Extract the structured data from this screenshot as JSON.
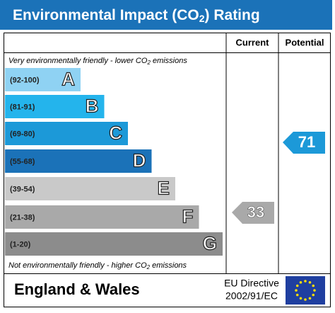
{
  "header": {
    "title": {
      "pre": "Environmental Impact (CO",
      "sub": "2",
      "post": ") Rating"
    }
  },
  "columns": {
    "current": "Current",
    "potential": "Potential"
  },
  "top_note": {
    "pre": "Very environmentally friendly - lower CO",
    "sub": "2",
    "post": " emissions"
  },
  "bands": [
    {
      "range": "(92-100)",
      "letter": "A",
      "color": "#8fd2f3"
    },
    {
      "range": "(81-91)",
      "letter": "B",
      "color": "#24b4ec"
    },
    {
      "range": "(69-80)",
      "letter": "C",
      "color": "#1c99d8"
    },
    {
      "range": "(55-68)",
      "letter": "D",
      "color": "#1b72b8"
    },
    {
      "range": "(39-54)",
      "letter": "E",
      "color": "#c9c9c9"
    },
    {
      "range": "(21-38)",
      "letter": "F",
      "color": "#a9a9a9"
    },
    {
      "range": "(1-20)",
      "letter": "G",
      "color": "#8c8c8c"
    }
  ],
  "ratings": {
    "current": 33,
    "potential": 71
  },
  "bottom_note": {
    "pre": "Not environmentally friendly - higher CO",
    "sub": "2",
    "post": " emissions"
  },
  "footer": {
    "region": "England & Wales",
    "directive": [
      "EU Directive",
      "2002/91/EC"
    ]
  }
}
